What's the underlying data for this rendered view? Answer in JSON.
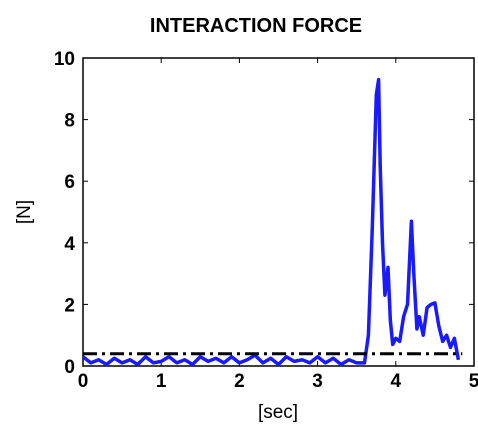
{
  "chart_data": {
    "type": "line",
    "title": "INTERACTION FORCE",
    "xlabel": "[sec]",
    "ylabel": "[N]",
    "xlim": [
      0,
      5
    ],
    "ylim": [
      0,
      10
    ],
    "xticks": [
      0,
      1,
      2,
      3,
      4,
      5
    ],
    "yticks": [
      0,
      2,
      4,
      6,
      8,
      10
    ],
    "xtick_labels": [
      "0",
      "1",
      "2",
      "3",
      "4",
      "5"
    ],
    "ytick_labels": [
      "0",
      "2",
      "4",
      "6",
      "8",
      "10"
    ],
    "grid": false,
    "series": [
      {
        "style": "solid",
        "color": "#1a1aff",
        "x": [
          0,
          0.1,
          0.2,
          0.3,
          0.4,
          0.5,
          0.6,
          0.7,
          0.8,
          0.9,
          1.0,
          1.1,
          1.2,
          1.3,
          1.4,
          1.5,
          1.6,
          1.7,
          1.8,
          1.9,
          2.0,
          2.1,
          2.2,
          2.3,
          2.4,
          2.5,
          2.6,
          2.7,
          2.8,
          2.9,
          3.0,
          3.1,
          3.2,
          3.3,
          3.4,
          3.5,
          3.6,
          3.65,
          3.7,
          3.75,
          3.78,
          3.8,
          3.83,
          3.86,
          3.9,
          3.93,
          3.96,
          4.0,
          4.05,
          4.1,
          4.15,
          4.2,
          4.23,
          4.27,
          4.3,
          4.35,
          4.4,
          4.45,
          4.5,
          4.55,
          4.6,
          4.65,
          4.7,
          4.75,
          4.8
        ],
        "y": [
          0.3,
          0.1,
          0.2,
          0.05,
          0.25,
          0.1,
          0.2,
          0.05,
          0.3,
          0.1,
          0.15,
          0.3,
          0.1,
          0.2,
          0.05,
          0.3,
          0.15,
          0.25,
          0.1,
          0.3,
          0.1,
          0.2,
          0.35,
          0.1,
          0.25,
          0.05,
          0.3,
          0.15,
          0.2,
          0.1,
          0.3,
          0.1,
          0.25,
          0.05,
          0.2,
          0.1,
          0.1,
          1.0,
          4.5,
          8.8,
          9.3,
          6.5,
          4.0,
          2.3,
          3.2,
          1.5,
          0.7,
          0.9,
          0.8,
          1.6,
          2.0,
          4.7,
          3.0,
          1.2,
          1.6,
          1.0,
          1.9,
          2.0,
          2.05,
          1.3,
          0.8,
          1.0,
          0.6,
          0.9,
          0.2
        ]
      },
      {
        "style": "dash-dot",
        "color": "#000000",
        "x": [
          0,
          4.85
        ],
        "y": [
          0.4,
          0.4
        ]
      }
    ]
  }
}
